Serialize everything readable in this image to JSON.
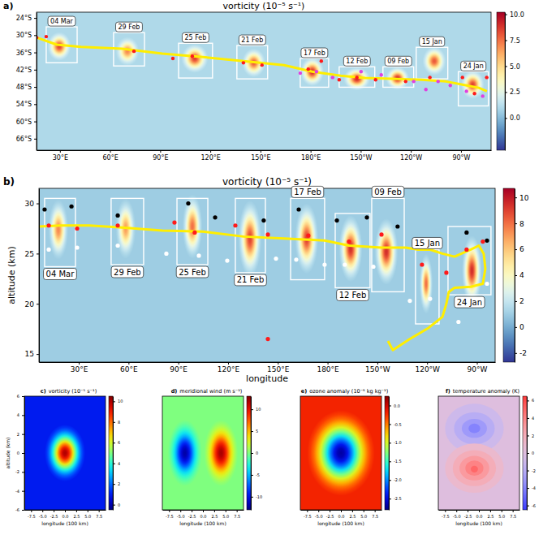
{
  "chart_data": [
    {
      "type": "heatmap",
      "panel_label": "a)",
      "title": "vorticity (10⁻⁵ s⁻¹)",
      "color": "RdYlBu_r",
      "xlim": [
        16,
        288
      ],
      "ylim": [
        -70,
        -22
      ],
      "xticks": [
        {
          "value": 30,
          "label": "30°E"
        },
        {
          "value": 60,
          "label": "60°E"
        },
        {
          "value": 90,
          "label": "90°E"
        },
        {
          "value": 120,
          "label": "120°E"
        },
        {
          "value": 150,
          "label": "150°E"
        },
        {
          "value": 180,
          "label": "180°E"
        },
        {
          "value": 210,
          "label": "150°W"
        },
        {
          "value": 240,
          "label": "120°W"
        },
        {
          "value": 270,
          "label": "90°W"
        }
      ],
      "yticks": [
        {
          "value": -24,
          "label": "24°S"
        },
        {
          "value": -30,
          "label": "30°S"
        },
        {
          "value": -36,
          "label": "36°S"
        },
        {
          "value": -42,
          "label": "42°S"
        },
        {
          "value": -48,
          "label": "48°S"
        },
        {
          "value": -54,
          "label": "54°S"
        },
        {
          "value": -60,
          "label": "60°S"
        },
        {
          "value": -66,
          "label": "66°S"
        }
      ],
      "colorbar": {
        "range": [
          -3.1,
          10.2
        ],
        "ticks": [
          {
            "value": 0,
            "label": "0.0"
          },
          2.5,
          {
            "value": 5,
            "label": "5.0"
          },
          7.5,
          {
            "value": 10,
            "label": "10.0"
          }
        ]
      },
      "background": 1.0,
      "vortices": [
        {
          "date": "04 Mar",
          "x": 29.6,
          "y": -33.9,
          "rx": 7,
          "ry": 5,
          "value": 8.5,
          "box_x": [
            21.8,
            40.3
          ],
          "box_y": [
            -27.1,
            -39.6
          ]
        },
        {
          "date": "29 Feb",
          "x": 70.4,
          "y": -35.6,
          "rx": 7,
          "ry": 5,
          "value": 7,
          "box_x": [
            62.1,
            80.6
          ],
          "box_y": [
            -29.1,
            -40.7
          ]
        },
        {
          "date": "25 Feb",
          "x": 110.7,
          "y": -38.1,
          "rx": 8,
          "ry": 5,
          "value": 8.5,
          "box_x": [
            101.0,
            121.3
          ],
          "box_y": [
            -32.8,
            -44.9
          ]
        },
        {
          "date": "21 Feb",
          "x": 146,
          "y": -39.6,
          "rx": 7,
          "ry": 5,
          "value": 8,
          "box_x": [
            135.9,
            154.3
          ],
          "box_y": [
            -33.6,
            -45.2
          ]
        },
        {
          "date": "17 Feb",
          "x": 181,
          "y": -42.7,
          "rx": 7,
          "ry": 5,
          "value": 9,
          "box_x": [
            173.8,
            190.8
          ],
          "box_y": [
            -38.1,
            -48.1
          ]
        },
        {
          "date": "12 Feb",
          "x": 207.7,
          "y": -45.2,
          "rx": 8,
          "ry": 4,
          "value": 9,
          "box_x": [
            197.1,
            218.4
          ],
          "box_y": [
            -41.0,
            -48.1
          ]
        },
        {
          "date": "09 Feb",
          "x": 232,
          "y": -45,
          "rx": 7,
          "ry": 4,
          "value": 9,
          "box_x": [
            223.3,
            241.7
          ],
          "box_y": [
            -41.0,
            -48.1
          ]
        },
        {
          "date": "15 Jan",
          "x": 254,
          "y": -39,
          "rx": 7,
          "ry": 5,
          "value": 8,
          "box_x": [
            243.2,
            262.1
          ],
          "box_y": [
            -34.2,
            -45.2
          ]
        },
        {
          "date": "24 Jan",
          "x": 277,
          "y": -47.2,
          "rx": 7,
          "ry": 5,
          "value": 8.5,
          "box_x": [
            268.4,
            286.4
          ],
          "box_y": [
            -42.7,
            -54.6
          ]
        }
      ],
      "track": {
        "color": "#ffee00",
        "x": [
          16,
          28.1,
          42.7,
          67.0,
          91.2,
          115.5,
          139.8,
          164.1,
          181.0,
          198.0,
          212.6,
          232.0,
          246.6,
          261.1,
          270.9,
          280.6,
          285.5
        ],
        "y": [
          -30.8,
          -33.3,
          -34.1,
          -34.7,
          -36.4,
          -37.6,
          -39.0,
          -40.4,
          -42.7,
          -44.1,
          -44.9,
          -45.2,
          -45.5,
          -46.1,
          -47.2,
          -48.3,
          -49.5
        ]
      },
      "points": [
        {
          "color": "#ff1a1a",
          "marker": "circle",
          "x": [
            16,
            21.8,
            74.3,
            97.6,
            109.2,
            139.8,
            150.9,
            178.6,
            186.4,
            197.1,
            207.7,
            218.9,
            236.9,
            251.4,
            270.9,
            278.1,
            285.4
          ],
          "y": [
            -30.8,
            -30.5,
            -35.6,
            -38.1,
            -37.3,
            -39.6,
            -40.4,
            -41.8,
            -39.0,
            -45.5,
            -44.7,
            -45.5,
            -46.1,
            -44.7,
            -44.7,
            -50.3,
            -44.7
          ]
        },
        {
          "color": "#e040e0",
          "marker": "circle",
          "x": [
            173.8,
            183.5,
            193.2,
            210.2,
            222.3,
            241.7,
            249.0,
            256.3,
            263.6,
            273.3,
            283.0
          ],
          "y": [
            -43.2,
            -42.7,
            -44.7,
            -42.7,
            -43.8,
            -46.1,
            -48.9,
            -46.1,
            -47.5,
            -49.5,
            -51.2
          ]
        }
      ]
    },
    {
      "type": "heatmap",
      "panel_label": "b)",
      "title": "vorticity (10⁻⁵ s⁻¹)",
      "color": "RdYlBu_r",
      "xlabel": "longitude",
      "ylabel": "altitude (km)",
      "xlim": [
        6,
        281
      ],
      "ylim": [
        14.2,
        31.5
      ],
      "xticks": [
        {
          "value": 30,
          "label": "30°E"
        },
        {
          "value": 60,
          "label": "60°E"
        },
        {
          "value": 90,
          "label": "90°E"
        },
        {
          "value": 120,
          "label": "120°E"
        },
        {
          "value": 150,
          "label": "150°E"
        },
        {
          "value": 180,
          "label": "180°E"
        },
        {
          "value": 210,
          "label": "150°W"
        },
        {
          "value": 240,
          "label": "120°W"
        },
        {
          "value": 270,
          "label": "90°W"
        }
      ],
      "yticks": [
        15,
        20,
        25,
        30
      ],
      "colorbar": {
        "range": [
          -2.7,
          10.7
        ],
        "ticks": [
          -2,
          0,
          2,
          4,
          6,
          8,
          10
        ]
      },
      "background": 1.0,
      "vortices": [
        {
          "date": "04 Mar",
          "x": 17.7,
          "y": 27.4,
          "rx": 6,
          "ry": 3,
          "value": 7.5,
          "box_x": [
            9.4,
            28.0
          ],
          "box_y": [
            30.5,
            23.7
          ]
        },
        {
          "date": "29 Feb",
          "x": 58.3,
          "y": 27.5,
          "rx": 6,
          "ry": 3,
          "value": 7,
          "box_x": [
            49.5,
            69.1
          ],
          "box_y": [
            30.5,
            23.9
          ]
        },
        {
          "date": "25 Feb",
          "x": 98.5,
          "y": 27.7,
          "rx": 6,
          "ry": 3.2,
          "value": 8,
          "box_x": [
            89.2,
            107.8
          ],
          "box_y": [
            30.5,
            23.9
          ]
        },
        {
          "date": "21 Feb",
          "x": 133.2,
          "y": 26.5,
          "rx": 7,
          "ry": 3.8,
          "value": 9,
          "box_x": [
            124.4,
            142.5
          ],
          "box_y": [
            30.5,
            23.1
          ]
        },
        {
          "date": "17 Feb",
          "x": 167.4,
          "y": 26.5,
          "rx": 7,
          "ry": 3.5,
          "value": 9,
          "box_x": [
            157.7,
            178.2
          ],
          "box_y": [
            30.5,
            22.4
          ]
        },
        {
          "date": "12 Feb",
          "x": 193.9,
          "y": 25.5,
          "rx": 7,
          "ry": 3.3,
          "value": 9.5,
          "box_x": [
            184.6,
            205.6
          ],
          "box_y": [
            29.0,
            21.6
          ]
        },
        {
          "date": "09 Feb",
          "x": 215.4,
          "y": 25.2,
          "rx": 7,
          "ry": 3.3,
          "value": 9.5,
          "box_x": [
            206.6,
            226.2
          ],
          "box_y": [
            30.5,
            21.2
          ]
        },
        {
          "date": "15 Jan",
          "x": 239.4,
          "y": 22.0,
          "rx": 4,
          "ry": 3,
          "value": 8,
          "box_x": [
            233.0,
            247.2
          ],
          "box_y": [
            25.4,
            18.0
          ]
        },
        {
          "date": "24 Jan",
          "x": 267,
          "y": 23.3,
          "rx": 6,
          "ry": 3.5,
          "value": 9.5,
          "box_x": [
            252.6,
            278.5
          ],
          "box_y": [
            27.7,
            20.9
          ]
        }
      ],
      "track": {
        "color": "#ffee00",
        "x": [
          216.4,
          219.3,
          229.6,
          240.8,
          249.2,
          251.6,
          253.1,
          256.5,
          266.3,
          273.6,
          275.1,
          274.1,
          271.2,
          266.3,
          256.5,
          249.2,
          241.8,
          234.5,
          227.1,
          212.5,
          192.9,
          178.2,
          153.7,
          129.3,
          104.8,
          80.4,
          55.9,
          36.3,
          19.2,
          6.0
        ],
        "y": [
          16.3,
          15.4,
          16.5,
          17.6,
          18.7,
          20.0,
          21.2,
          21.6,
          21.7,
          22.0,
          23.5,
          25.0,
          25.8,
          25.4,
          24.7,
          25.0,
          25.4,
          25.4,
          25.6,
          25.6,
          25.8,
          26.3,
          26.5,
          26.7,
          27.2,
          27.3,
          27.6,
          27.8,
          27.8,
          27.7
        ]
      },
      "points": [
        {
          "color": "#000000",
          "marker": "circle",
          "x": [
            9.4,
            25.6,
            53.5,
            96.0,
            112.2,
            141.5,
            162.6,
            185.6,
            203.7,
            222.2,
            263.8,
            276.1
          ],
          "y": [
            29.4,
            29.7,
            28.8,
            30.0,
            28.6,
            28.3,
            29.4,
            28.3,
            28.6,
            27.7,
            27.1,
            26.3
          ]
        },
        {
          "color": "#ffffff",
          "marker": "circle",
          "x": [
            11.9,
            29.0,
            53.5,
            82.8,
            102.4,
            119.5,
            148.9,
            161.1,
            178.2,
            190.4,
            207.6,
            229.6,
            241.8,
            258.9,
            276.1
          ],
          "y": [
            25.4,
            25.6,
            25.8,
            25.0,
            24.8,
            24.3,
            24.5,
            24.4,
            23.9,
            23.9,
            23.7,
            20.3,
            20.5,
            18.2,
            22.0
          ]
        },
        {
          "color": "#ff1a1a",
          "marker": "circle",
          "x": [
            11.9,
            29.0,
            53.5,
            87.7,
            99.9,
            124.4,
            144.0,
            168.4,
            192.9,
            212.5,
            236.9,
            251.6,
            263.8,
            273.6,
            144.0
          ],
          "y": [
            27.8,
            27.5,
            27.8,
            28.1,
            27.1,
            27.8,
            26.9,
            26.8,
            26.2,
            26.9,
            23.9,
            23.1,
            25.4,
            26.2,
            16.5
          ]
        }
      ]
    },
    {
      "type": "heatmap",
      "panel_label": "c)",
      "title": "vorticity  (10⁻⁵ s⁻¹)",
      "color": "jet",
      "xlabel": "longitude (100 km)",
      "ylabel": "altitude (km)",
      "xlim": [
        -9,
        9
      ],
      "ylim": [
        -6,
        6
      ],
      "xticks": [
        -7.5,
        {
          "value": -5,
          "label": "-5.0"
        },
        -2.5,
        {
          "value": 0,
          "label": "0.0"
        },
        2.5,
        {
          "value": 5,
          "label": "5.0"
        },
        7.5
      ],
      "yticks": [
        -6,
        -4,
        -2,
        0,
        2,
        4,
        6
      ],
      "colorbar": {
        "range": [
          -0.5,
          10.5
        ],
        "ticks": [
          0,
          2,
          4,
          6,
          8,
          10
        ]
      },
      "background": 1,
      "features": [
        {
          "x": 0,
          "y": 0,
          "rx": 4.5,
          "ry": 3,
          "value": 10
        }
      ]
    },
    {
      "type": "heatmap",
      "panel_label": "d)",
      "title": "meridional wind (m s⁻¹)",
      "color": "jet",
      "xlabel": "longitude (100 km)",
      "tick_labels": "x",
      "xlim": [
        -9,
        9
      ],
      "ylim": [
        -6,
        6
      ],
      "xticks": [
        -7.5,
        {
          "value": -5,
          "label": "-5.0"
        },
        -2.5,
        {
          "value": 0,
          "label": "0.0"
        },
        2.5,
        {
          "value": 5,
          "label": "5.0"
        },
        7.5
      ],
      "colorbar": {
        "range": [
          -13,
          13
        ],
        "ticks": [
          -10,
          -5,
          0,
          5,
          10
        ]
      },
      "background": 0,
      "features": [
        {
          "x": -4,
          "y": 0,
          "rx": 3.8,
          "ry": 3.5,
          "value": -12
        },
        {
          "x": 4,
          "y": 0,
          "rx": 3.8,
          "ry": 3.5,
          "value": 12
        }
      ]
    },
    {
      "type": "heatmap",
      "panel_label": "e)",
      "title": "ozone anomaly (10⁻⁶ kg kg⁻¹)",
      "color": "jet",
      "xlabel": "longitude (100 km)",
      "tick_labels": "x",
      "xlim": [
        -9,
        9
      ],
      "ylim": [
        -6,
        6
      ],
      "xticks": [
        -7.5,
        {
          "value": -5,
          "label": "-5.0"
        },
        -2.5,
        {
          "value": 0,
          "label": "0.0"
        },
        2.5,
        {
          "value": 5,
          "label": "5.0"
        },
        7.5
      ],
      "colorbar": {
        "range": [
          -2.8,
          0.25
        ],
        "ticks": [
          -2.5,
          {
            "value": -2,
            "label": "-2.0"
          },
          -1.5,
          {
            "value": -1,
            "label": "-1.0"
          },
          -0.5,
          {
            "value": 0,
            "label": "0.0"
          }
        ]
      },
      "background": -0.2,
      "features": [
        {
          "x": 0,
          "y": 0,
          "rx": 7.5,
          "ry": 4.5,
          "value": -2.7
        }
      ]
    },
    {
      "type": "contourf",
      "panel_label": "f)",
      "title": "temperature anomaly (K)",
      "color": "bwr",
      "xlabel": "longitude (100 km)",
      "tick_labels": "x",
      "xlim": [
        -9,
        9
      ],
      "ylim": [
        -6,
        6
      ],
      "xticks": [
        -7.5,
        {
          "value": -5,
          "label": "-5.0"
        },
        -2.5,
        {
          "value": 0,
          "label": "0.0"
        },
        2.5,
        {
          "value": 5,
          "label": "5.0"
        },
        7.5
      ],
      "colorbar": {
        "range": [
          -6.5,
          6.5
        ],
        "ticks": [
          -6,
          -4,
          -2,
          0,
          2,
          4,
          6
        ]
      },
      "background": 0,
      "features": [
        {
          "x": -1,
          "y": 2.6,
          "rx": 6.5,
          "ry": 2.6,
          "value": -1
        },
        {
          "x": -1,
          "y": 2.6,
          "rx": 4.5,
          "ry": 1.7,
          "value": -2
        },
        {
          "x": -1,
          "y": 2.6,
          "rx": 2.8,
          "ry": 1.0,
          "value": -3
        },
        {
          "x": -1,
          "y": 2.6,
          "rx": 1.3,
          "ry": 0.5,
          "value": -4
        },
        {
          "x": -1,
          "y": -1.6,
          "rx": 6.5,
          "ry": 2.6,
          "value": 1
        },
        {
          "x": -1,
          "y": -1.6,
          "rx": 4.8,
          "ry": 1.9,
          "value": 2
        },
        {
          "x": -1,
          "y": -1.6,
          "rx": 3.3,
          "ry": 1.3,
          "value": 3
        },
        {
          "x": -1,
          "y": -1.6,
          "rx": 2.0,
          "ry": 0.8,
          "value": 4
        },
        {
          "x": -1,
          "y": -1.7,
          "rx": 0.8,
          "ry": 0.35,
          "value": 5
        }
      ]
    }
  ]
}
